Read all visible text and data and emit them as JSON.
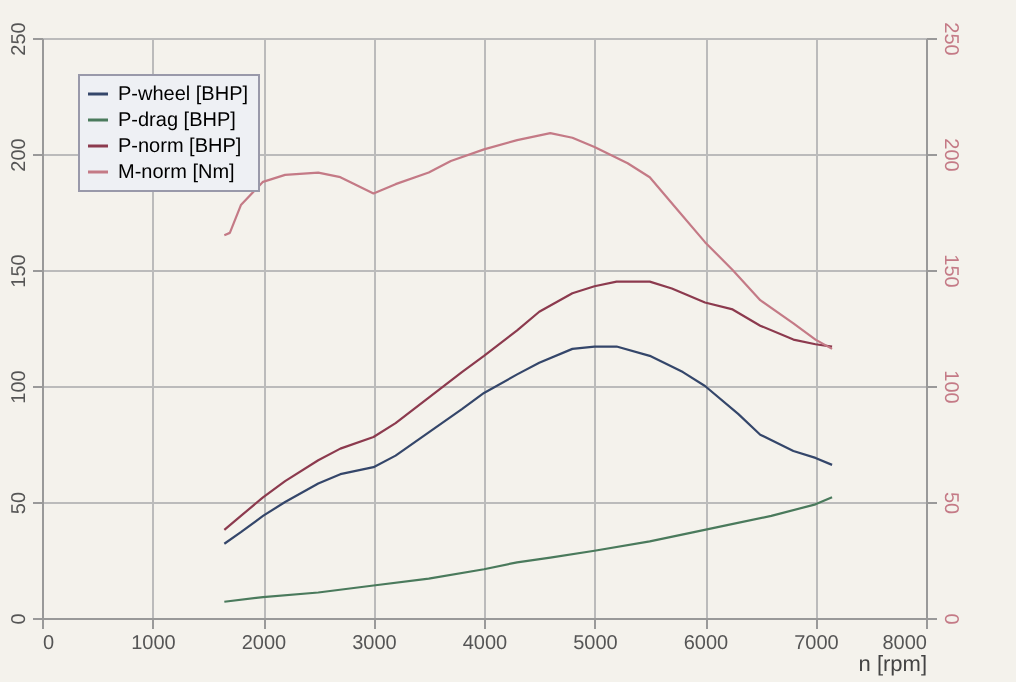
{
  "chart_data": {
    "type": "line",
    "xlabel": "n [rpm]",
    "xlim": [
      0,
      8000
    ],
    "xticks": [
      0,
      1000,
      2000,
      3000,
      4000,
      5000,
      6000,
      7000,
      8000
    ],
    "ylim": [
      0,
      250
    ],
    "yticks": [
      0,
      50,
      100,
      150,
      200,
      250
    ],
    "y2lim": [
      0,
      250
    ],
    "y2ticks": [
      0,
      50,
      100,
      150,
      200,
      250
    ],
    "grid": true,
    "legend": "top left",
    "series": [
      {
        "name": "P-wheel [BHP]",
        "color": "#34466a",
        "x": [
          1650,
          1800,
          2000,
          2200,
          2500,
          2700,
          3000,
          3200,
          3500,
          3800,
          4000,
          4300,
          4500,
          4800,
          5000,
          5200,
          5500,
          5800,
          6000,
          6300,
          6500,
          6800,
          7000,
          7150
        ],
        "values": [
          32,
          37,
          44,
          50,
          58,
          62,
          65,
          70,
          80,
          90,
          97,
          105,
          110,
          116,
          117,
          117,
          113,
          106,
          100,
          88,
          79,
          72,
          69,
          66
        ]
      },
      {
        "name": "P-drag [BHP]",
        "color": "#4a7a5c",
        "x": [
          1650,
          2000,
          2500,
          3000,
          3500,
          4000,
          4300,
          4600,
          5000,
          5500,
          5900,
          6200,
          6600,
          7000,
          7150
        ],
        "values": [
          7,
          9,
          11,
          14,
          17,
          21,
          24,
          26,
          29,
          33,
          37,
          40,
          44,
          49,
          52
        ]
      },
      {
        "name": "P-norm [BHP]",
        "color": "#8c3a4e",
        "x": [
          1650,
          1800,
          2000,
          2200,
          2500,
          2700,
          3000,
          3200,
          3500,
          3800,
          4000,
          4300,
          4500,
          4800,
          5000,
          5200,
          5500,
          5700,
          6000,
          6250,
          6500,
          6800,
          7000,
          7150
        ],
        "values": [
          38,
          44,
          52,
          59,
          68,
          73,
          78,
          84,
          95,
          106,
          113,
          124,
          132,
          140,
          143,
          145,
          145,
          142,
          136,
          133,
          126,
          120,
          118,
          117
        ]
      },
      {
        "name": "M-norm [Nm]",
        "color": "#c47a86",
        "axis": "y2",
        "x": [
          1650,
          1700,
          1800,
          2000,
          2200,
          2500,
          2700,
          3000,
          3200,
          3500,
          3700,
          4000,
          4300,
          4600,
          4800,
          5000,
          5300,
          5500,
          5750,
          6000,
          6250,
          6500,
          6800,
          7000,
          7150
        ],
        "values": [
          165,
          166,
          178,
          188,
          191,
          192,
          190,
          183,
          187,
          192,
          197,
          202,
          206,
          209,
          207,
          203,
          196,
          190,
          176,
          162,
          150,
          137,
          127,
          120,
          116
        ]
      }
    ]
  }
}
